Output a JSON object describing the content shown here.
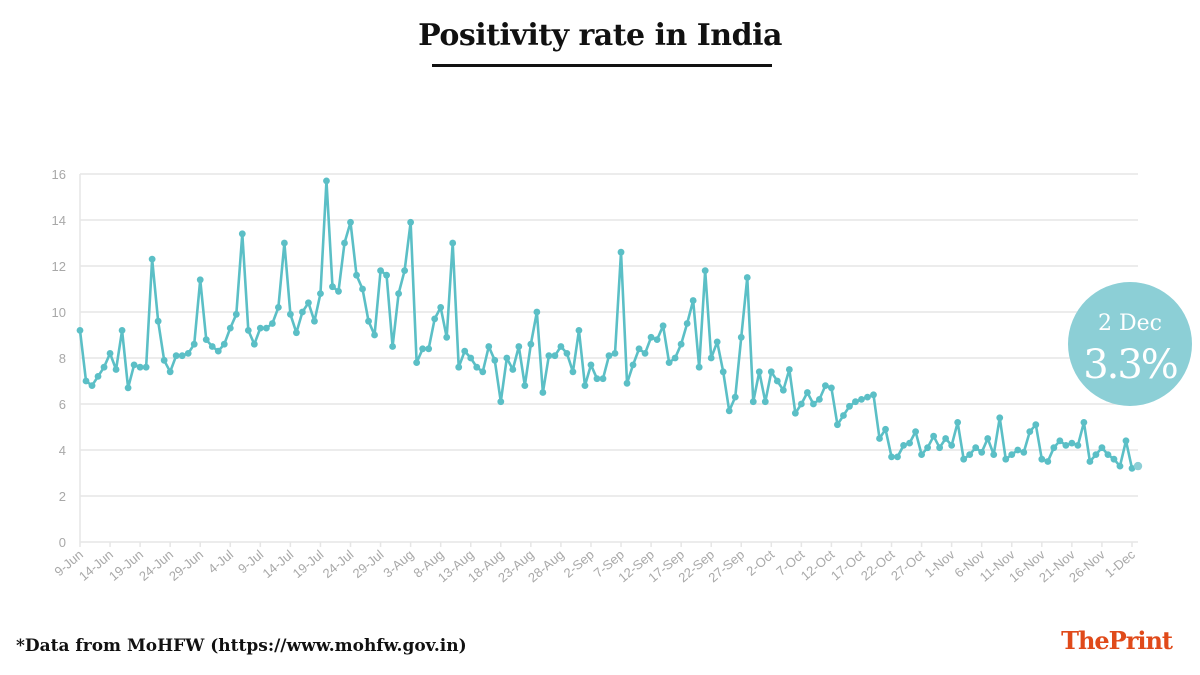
{
  "title": "Positivity rate in India",
  "footnote": "*Data from MoHFW (https://www.mohfw.gov.in)",
  "brand": {
    "part1": "The",
    "part2": "Print"
  },
  "callout": {
    "date": "2 Dec",
    "value": "3.3%"
  },
  "colors": {
    "line": "#5bbfc6",
    "callout": "#8ccfd6",
    "grid": "#e6e6e6",
    "tick": "#a8a8a8",
    "brand": "#e04a1a"
  },
  "chart_data": {
    "type": "line",
    "title": "Positivity rate in India",
    "xlabel": "",
    "ylabel": "",
    "ylim": [
      0,
      16
    ],
    "yticks": [
      0,
      2,
      4,
      6,
      8,
      10,
      12,
      14,
      16
    ],
    "grid": true,
    "x_start": "9-Jun",
    "x_end": "2-Dec",
    "xtick_labels": [
      "9-Jun",
      "14-Jun",
      "19-Jun",
      "24-Jun",
      "29-Jun",
      "4-Jul",
      "9-Jul",
      "14-Jul",
      "19-Jul",
      "24-Jul",
      "29-Jul",
      "3-Aug",
      "8-Aug",
      "13-Aug",
      "18-Aug",
      "23-Aug",
      "28-Aug",
      "2-Sep",
      "7-Sep",
      "12-Sep",
      "17-Sep",
      "22-Sep",
      "27-Sep",
      "2-Oct",
      "7-Oct",
      "12-Oct",
      "17-Oct",
      "22-Oct",
      "27-Oct",
      "1-Nov",
      "6-Nov",
      "11-Nov",
      "16-Nov",
      "21-Nov",
      "26-Nov",
      "1-Dec"
    ],
    "series": [
      {
        "values": [
          9.2,
          7.0,
          6.8,
          7.2,
          7.6,
          8.2,
          7.5,
          9.2,
          6.7,
          7.7,
          7.6,
          7.6,
          12.3,
          9.6,
          7.9,
          7.4,
          8.1,
          8.1,
          8.2,
          8.6,
          11.4,
          8.8,
          8.5,
          8.3,
          8.6,
          9.3,
          9.9,
          13.4,
          9.2,
          8.6,
          9.3,
          9.3,
          9.5,
          10.2,
          13.0,
          9.9,
          9.1,
          10.0,
          10.4,
          9.6,
          10.8,
          15.7,
          11.1,
          10.9,
          13.0,
          13.9,
          11.6,
          11.0,
          9.6,
          9.0,
          11.8,
          11.6,
          8.5,
          10.8,
          11.8,
          13.9,
          7.8,
          8.4,
          8.4,
          9.7,
          10.2,
          8.9,
          13.0,
          7.6,
          8.3,
          8.0,
          7.6,
          7.4,
          8.5,
          7.9,
          6.1,
          8.0,
          7.5,
          8.5,
          6.8,
          8.6,
          10.0,
          6.5,
          8.1,
          8.1,
          8.5,
          8.2,
          7.4,
          9.2,
          6.8,
          7.7,
          7.1,
          7.1,
          8.1,
          8.2,
          12.6,
          6.9,
          7.7,
          8.4,
          8.2,
          8.9,
          8.8,
          9.4,
          7.8,
          8.0,
          8.6,
          9.5,
          10.5,
          7.6,
          11.8,
          8.0,
          8.7,
          7.4,
          5.7,
          6.3,
          8.9,
          11.5,
          6.1,
          7.4,
          6.1,
          7.4,
          7.0,
          6.6,
          7.5,
          5.6,
          6.0,
          6.5,
          6.0,
          6.2,
          6.8,
          6.7,
          5.1,
          5.5,
          5.9,
          6.1,
          6.2,
          6.3,
          6.4,
          4.5,
          4.9,
          3.7,
          3.7,
          4.2,
          4.3,
          4.8,
          3.8,
          4.1,
          4.6,
          4.1,
          4.5,
          4.2,
          5.2,
          3.6,
          3.8,
          4.1,
          3.9,
          4.5,
          3.8,
          5.4,
          3.6,
          3.8,
          4.0,
          3.9,
          4.8,
          5.1,
          3.6,
          3.5,
          4.1,
          4.4,
          4.2,
          4.3,
          4.2,
          5.2,
          3.5,
          3.8,
          4.1,
          3.8,
          3.6,
          3.3,
          4.4,
          3.2,
          3.3
        ]
      }
    ]
  }
}
